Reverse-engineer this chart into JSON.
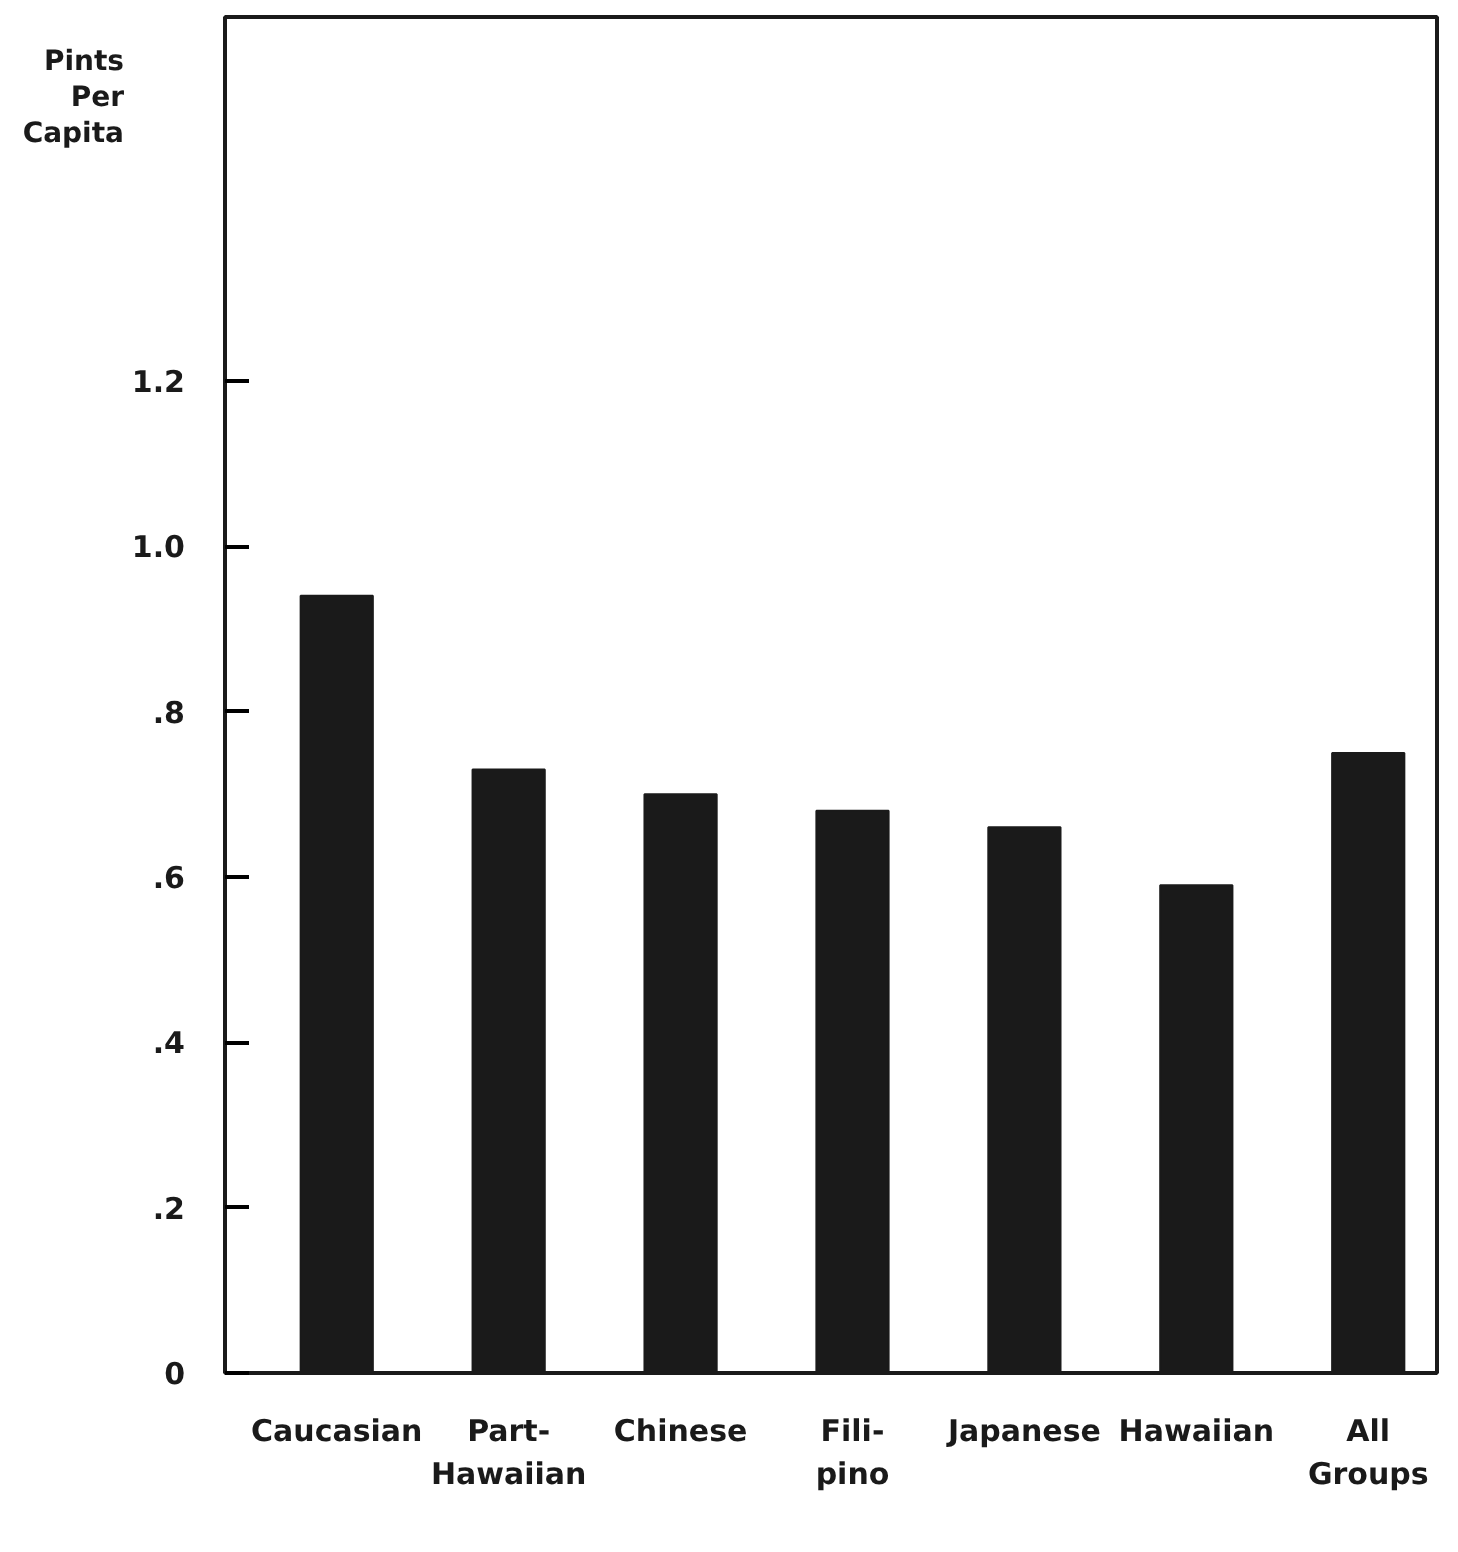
{
  "chart_data": {
    "type": "bar",
    "ylabel": "Pints\nPer\nCapita",
    "categories": [
      "Caucasian",
      "Part-\nHawaiian",
      "Chinese",
      "Fili-\npino",
      "Japanese",
      "Hawaiian",
      "All\nGroups"
    ],
    "values": [
      0.94,
      0.73,
      0.7,
      0.68,
      0.66,
      0.59,
      0.75
    ],
    "color": "#1a1a1a",
    "ylim": [
      0,
      1.64
    ],
    "yticks": [
      0,
      {
        "value": 0.2,
        "label": ".2"
      },
      {
        "value": 0.4,
        "label": ".4"
      },
      {
        "value": 0.6,
        "label": ".6"
      },
      {
        "value": 0.8,
        "label": ".8"
      },
      {
        "value": 1.0,
        "label": "1.0"
      },
      {
        "value": 1.2,
        "label": "1.2"
      }
    ],
    "grid": false
  }
}
